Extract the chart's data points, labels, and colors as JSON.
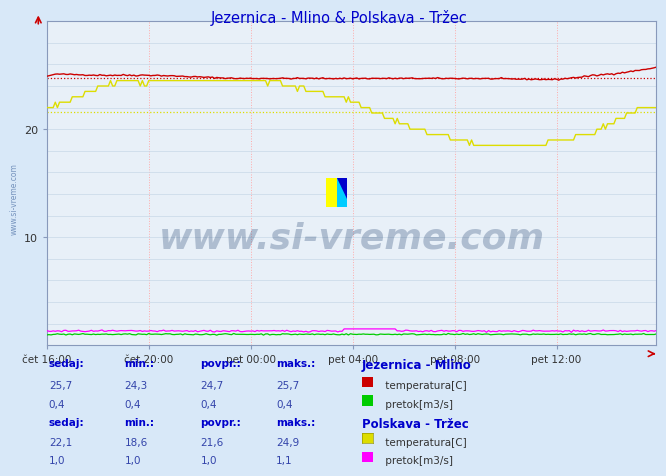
{
  "title": "Jezernica - Mlino & Polskava - Tržec",
  "title_color": "#0000cc",
  "bg_color": "#d8e8f8",
  "plot_bg_color": "#e8f0f8",
  "grid_color_major": "#c8d8e8",
  "grid_color_minor": "#ffaaaa",
  "xlim": [
    0,
    287
  ],
  "ylim": [
    0,
    30
  ],
  "yticks": [
    10,
    20
  ],
  "xtick_labels": [
    "čet 16:00",
    "čet 20:00",
    "pet 00:00",
    "pet 04:00",
    "pet 08:00",
    "pet 12:00"
  ],
  "xtick_positions": [
    0,
    48,
    96,
    144,
    192,
    240
  ],
  "watermark_text": "www.si-vreme.com",
  "watermark_color": "#1a3a6a",
  "watermark_alpha": 0.28,
  "side_label": "www.si-vreme.com",
  "jezernica_temp_color": "#cc0000",
  "jezernica_pretok_color": "#00cc00",
  "polskava_temp_color": "#dddd00",
  "polskava_pretok_color": "#ff00ff",
  "jezernica_temp_avg": 24.7,
  "jezernica_temp_min": 24.3,
  "jezernica_temp_max": 25.7,
  "jezernica_temp_sedaj": 25.7,
  "jezernica_pretok_avg": 0.4,
  "jezernica_pretok_min": 0.4,
  "jezernica_pretok_max": 0.4,
  "jezernica_pretok_sedaj": 0.4,
  "polskava_temp_avg": 21.6,
  "polskava_temp_min": 18.6,
  "polskava_temp_max": 24.9,
  "polskava_temp_sedaj": 22.1,
  "polskava_pretok_avg": 1.0,
  "polskava_pretok_min": 1.0,
  "polskava_pretok_max": 1.1,
  "polskava_pretok_sedaj": 1.0,
  "axis_arrow_color": "#cc0000",
  "spine_color": "#8899bb",
  "text_label_color": "#0000cc",
  "text_value_color": "#3344aa"
}
